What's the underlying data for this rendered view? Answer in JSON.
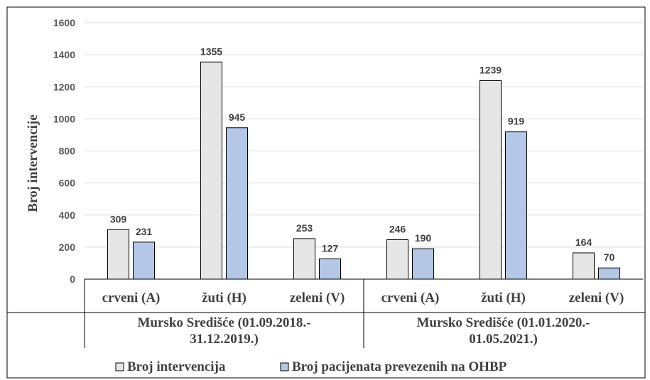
{
  "chart_data": {
    "type": "bar",
    "ylabel": "Broj intervencije",
    "ylim": [
      0,
      1600
    ],
    "yticks": [
      0,
      200,
      400,
      600,
      800,
      1000,
      1200,
      1400,
      1600
    ],
    "groups": [
      {
        "line1": "Mursko Središće (01.09.2018.-",
        "line2": "31.12.2019.)"
      },
      {
        "line1": "Mursko Središće (01.01.2020.-",
        "line2": "01.05.2021.)"
      }
    ],
    "categories": [
      "crveni (A)",
      "žuti (H)",
      "zeleni (V)",
      "crveni (A)",
      "žuti (H)",
      "zeleni (V)"
    ],
    "series": [
      {
        "name": "Broj intervencija",
        "color": "#e7e6e6",
        "values": [
          309,
          1355,
          253,
          246,
          1239,
          164
        ]
      },
      {
        "name": "Broj pacijenata prevezenih na OHBP",
        "color": "#b4c7e7",
        "values": [
          231,
          945,
          127,
          190,
          919,
          70
        ]
      }
    ],
    "grid": true,
    "legend": "bottom"
  }
}
